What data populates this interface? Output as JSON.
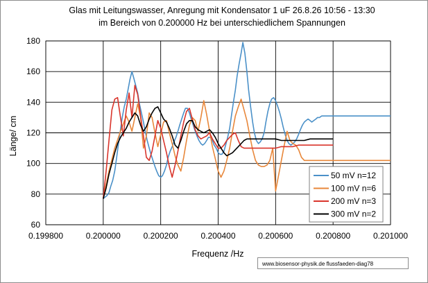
{
  "chart_data": {
    "type": "line",
    "title": "Glas mit Leitungswasser, Anregung mit Kondensator 1 uF  26.8.26 10:56 - 13:30",
    "subtitle": "im Bereich von  0.200000 Hz bei unterschiedlichem Spannungen",
    "xlabel": "Frequenz /Hz",
    "ylabel": "Länge/ cm",
    "xlim": [
      0.1998,
      0.201
    ],
    "ylim": [
      60,
      180
    ],
    "xticks": [
      "0.199800",
      "0.200000",
      "0.200200",
      "0.200400",
      "0.200600",
      "0.200800",
      "0.201000"
    ],
    "yticks": [
      "60",
      "80",
      "100",
      "120",
      "140",
      "160",
      "180"
    ],
    "grid": true,
    "legend_position": "bottom-right",
    "series": [
      {
        "name": "50 mV n=12",
        "color": "#4a90c8",
        "x": [
          0.2,
          0.200006,
          0.200013,
          0.20002,
          0.200026,
          0.200033,
          0.20004,
          0.200046,
          0.200053,
          0.20006,
          0.200066,
          0.200073,
          0.20008,
          0.200086,
          0.200093,
          0.2001,
          0.200106,
          0.200113,
          0.20012,
          0.200126,
          0.200133,
          0.20014,
          0.200146,
          0.200153,
          0.20016,
          0.200166,
          0.200173,
          0.20018,
          0.200186,
          0.200193,
          0.2002,
          0.200206,
          0.200213,
          0.20022,
          0.200226,
          0.200233,
          0.20024,
          0.200246,
          0.200253,
          0.20026,
          0.200266,
          0.200273,
          0.20028,
          0.200286,
          0.200293,
          0.2003,
          0.200306,
          0.200313,
          0.20032,
          0.200326,
          0.200333,
          0.20034,
          0.200346,
          0.200353,
          0.20036,
          0.200366,
          0.200373,
          0.20038,
          0.200386,
          0.200393,
          0.2004,
          0.200406,
          0.200413,
          0.20042,
          0.200426,
          0.200433,
          0.20044,
          0.200446,
          0.200453,
          0.20046,
          0.200466,
          0.200473,
          0.20048,
          0.200486,
          0.200493,
          0.2005,
          0.200506,
          0.200513,
          0.20052,
          0.200526,
          0.200533,
          0.20054,
          0.200546,
          0.200553,
          0.20056,
          0.200566,
          0.200573,
          0.20058,
          0.200586,
          0.200593,
          0.2006,
          0.200606,
          0.200613,
          0.20062,
          0.200626,
          0.200633,
          0.20064,
          0.200646,
          0.200653,
          0.20066,
          0.200666,
          0.200673,
          0.20068,
          0.200686,
          0.200693,
          0.2007,
          0.200706,
          0.200713,
          0.20072,
          0.200726,
          0.200733,
          0.20074,
          0.200746,
          0.200753,
          0.20076,
          0.200766,
          0.200773,
          0.20078,
          0.200786,
          0.200793,
          0.2008,
          0.2009,
          0.201
        ],
        "y": [
          77,
          78,
          79,
          81,
          85,
          89,
          95,
          103,
          113,
          122,
          130,
          137,
          142,
          148,
          155,
          160,
          156,
          151,
          146,
          139,
          133,
          127,
          121,
          115,
          110,
          106,
          102,
          98,
          95,
          92,
          91,
          92,
          95,
          99,
          104,
          108,
          111,
          114,
          117,
          121,
          125,
          129,
          133,
          136,
          136,
          133,
          129,
          125,
          121,
          118,
          115,
          113,
          112,
          113,
          115,
          117,
          117,
          115,
          112,
          110,
          107,
          106,
          106,
          108,
          112,
          117,
          123,
          131,
          140,
          148,
          157,
          165,
          172,
          179,
          172,
          160,
          148,
          137,
          127,
          120,
          115,
          113,
          114,
          116,
          120,
          127,
          134,
          139,
          142,
          143,
          141,
          138,
          134,
          129,
          124,
          119,
          115,
          113,
          112,
          113,
          114,
          116,
          119,
          122,
          125,
          127,
          128,
          129,
          128,
          127,
          128,
          129,
          130,
          130,
          131,
          131,
          131,
          131,
          131,
          131,
          131,
          131,
          131
        ]
      },
      {
        "name": "100 mV n=6",
        "color": "#e8873a",
        "x": [
          0.2,
          0.20002,
          0.20004,
          0.20006,
          0.20008,
          0.20009,
          0.2001,
          0.20011,
          0.20012,
          0.20013,
          0.20014,
          0.20015,
          0.20016,
          0.20017,
          0.20018,
          0.20019,
          0.2002,
          0.20021,
          0.20022,
          0.20023,
          0.20024,
          0.20025,
          0.20026,
          0.20027,
          0.20028,
          0.20029,
          0.2003,
          0.20031,
          0.20032,
          0.20033,
          0.20034,
          0.20035,
          0.20036,
          0.20037,
          0.20038,
          0.20039,
          0.2004,
          0.20041,
          0.20042,
          0.20043,
          0.20044,
          0.20045,
          0.20046,
          0.20047,
          0.20048,
          0.20049,
          0.2005,
          0.20051,
          0.20052,
          0.20053,
          0.20054,
          0.20055,
          0.20056,
          0.20057,
          0.20058,
          0.20059,
          0.2006,
          0.20061,
          0.20062,
          0.20063,
          0.20064,
          0.20065,
          0.20066,
          0.20067,
          0.20068,
          0.20069,
          0.2007,
          0.20071,
          0.20072,
          0.2008,
          0.2009,
          0.201
        ],
        "y": [
          77,
          95,
          110,
          121,
          131,
          127,
          121,
          130,
          139,
          130,
          110,
          118,
          133,
          130,
          120,
          111,
          119,
          127,
          128,
          120,
          113,
          105,
          99,
          95,
          104,
          115,
          125,
          130,
          128,
          121,
          130,
          141,
          132,
          121,
          111,
          103,
          95,
          91,
          95,
          102,
          110,
          121,
          131,
          137,
          142,
          135,
          128,
          118,
          109,
          102,
          99,
          98,
          98,
          99,
          102,
          110,
          82,
          92,
          102,
          112,
          121,
          115,
          113,
          112,
          109,
          104,
          102,
          102,
          102,
          102,
          102,
          102
        ]
      },
      {
        "name": "200 mV n=3",
        "color": "#d9342b",
        "x": [
          0.2,
          0.20001,
          0.20002,
          0.20003,
          0.20004,
          0.20005,
          0.20006,
          0.20007,
          0.20008,
          0.20009,
          0.2001,
          0.20011,
          0.20012,
          0.20013,
          0.20014,
          0.20015,
          0.20016,
          0.20017,
          0.20018,
          0.20019,
          0.2002,
          0.20021,
          0.20022,
          0.20023,
          0.20024,
          0.20025,
          0.20026,
          0.20027,
          0.20028,
          0.20029,
          0.2003,
          0.20031,
          0.20032,
          0.20033,
          0.20034,
          0.20035,
          0.20036,
          0.20037,
          0.20038,
          0.20039,
          0.2004,
          0.20041,
          0.20042,
          0.20043,
          0.20044,
          0.20045,
          0.20046,
          0.20047,
          0.20048,
          0.20049,
          0.2005,
          0.20052,
          0.20054,
          0.20056,
          0.20058,
          0.2006,
          0.20062,
          0.20064,
          0.20066,
          0.20068,
          0.2007,
          0.20072,
          0.20074,
          0.20076,
          0.20078,
          0.2008
        ],
        "y": [
          77,
          95,
          115,
          135,
          142,
          143,
          130,
          118,
          135,
          146,
          130,
          151,
          145,
          131,
          118,
          104,
          102,
          108,
          118,
          128,
          123,
          115,
          107,
          98,
          91,
          99,
          108,
          118,
          127,
          134,
          136,
          129,
          122,
          118,
          116,
          117,
          118,
          120,
          116,
          113,
          110,
          110,
          112,
          115,
          117,
          119,
          120,
          115,
          111,
          110,
          110,
          110,
          110,
          110,
          110,
          110,
          111,
          111,
          111,
          112,
          112,
          112,
          112,
          112,
          112,
          112
        ]
      },
      {
        "name": "300 mV n=2",
        "color": "#000000",
        "x": [
          0.2,
          0.20001,
          0.20002,
          0.20003,
          0.20004,
          0.20005,
          0.20006,
          0.20007,
          0.20008,
          0.20009,
          0.2001,
          0.20011,
          0.20012,
          0.20013,
          0.20014,
          0.20015,
          0.20016,
          0.20017,
          0.20018,
          0.20019,
          0.2002,
          0.20021,
          0.20022,
          0.20023,
          0.20024,
          0.20025,
          0.20026,
          0.20027,
          0.20028,
          0.20029,
          0.2003,
          0.20031,
          0.20032,
          0.20033,
          0.20034,
          0.20035,
          0.20036,
          0.20037,
          0.20038,
          0.20039,
          0.2004,
          0.20041,
          0.20042,
          0.20043,
          0.20044,
          0.20045,
          0.20046,
          0.20047,
          0.20048,
          0.20049,
          0.2005,
          0.20052,
          0.20054,
          0.20056,
          0.20058,
          0.2006,
          0.20062,
          0.20064,
          0.20066,
          0.20068,
          0.2007,
          0.20072,
          0.20074,
          0.20076,
          0.20078,
          0.2008
        ],
        "y": [
          77,
          84,
          93,
          100,
          107,
          113,
          117,
          120,
          123,
          127,
          130,
          133,
          131,
          125,
          121,
          124,
          129,
          133,
          136,
          137,
          133,
          129,
          127,
          123,
          118,
          112,
          110,
          115,
          121,
          126,
          128,
          128,
          124,
          122,
          121,
          120,
          121,
          122,
          120,
          117,
          113,
          110,
          107,
          105,
          106,
          107,
          109,
          111,
          113,
          115,
          116,
          116,
          116,
          116,
          116,
          116,
          115,
          115,
          115,
          115,
          115,
          116,
          116,
          116,
          116,
          116
        ]
      }
    ]
  },
  "credit": "www.biosensor-physik.de  flussfaeden-diag78"
}
